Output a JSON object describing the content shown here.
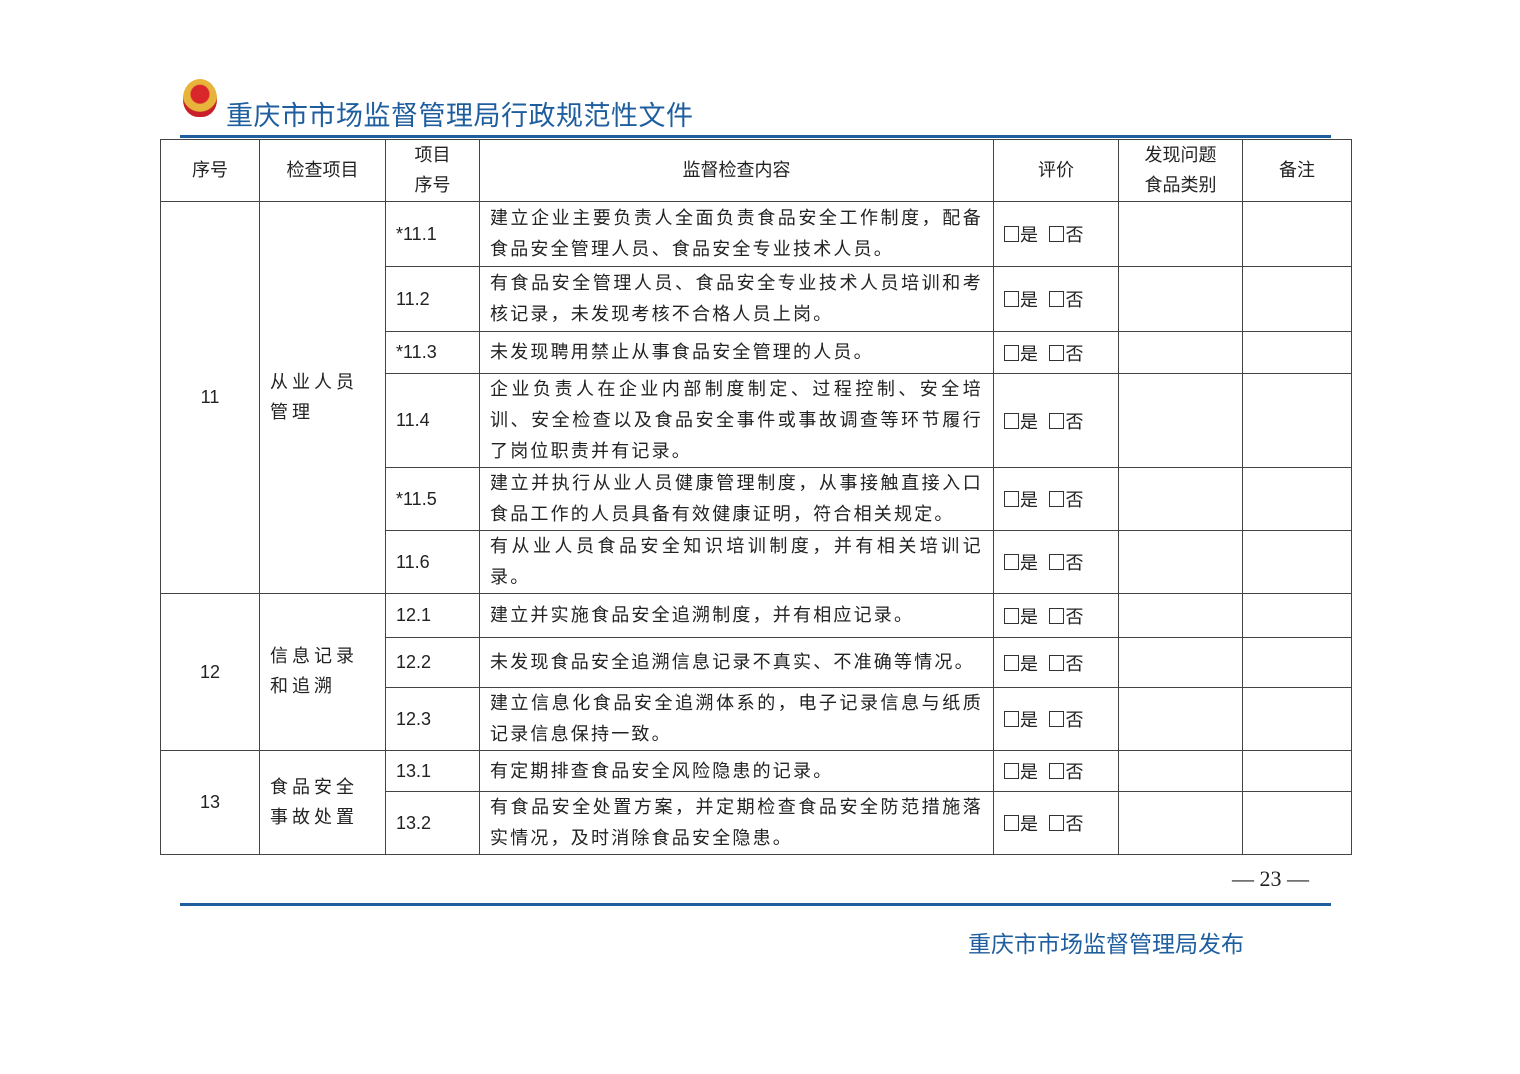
{
  "header": {
    "title": "重庆市市场监督管理局行政规范性文件"
  },
  "table": {
    "headers": [
      "序号",
      "检查项目",
      "项目\n序号",
      "监督检查内容",
      "评价",
      "发现问题\n食品类别",
      "备注"
    ],
    "eval_yes": "是",
    "eval_no": "否",
    "groups": [
      {
        "no": "11",
        "item": "从业人员管理",
        "rows": [
          {
            "sub": "*11.1",
            "content": "建立企业主要负责人全面负责食品安全工作制度，配备食品安全管理人员、食品安全专业技术人员。"
          },
          {
            "sub": "11.2",
            "content": "有食品安全管理人员、食品安全专业技术人员培训和考核记录，未发现考核不合格人员上岗。"
          },
          {
            "sub": "*11.3",
            "content": "未发现聘用禁止从事食品安全管理的人员。"
          },
          {
            "sub": "11.4",
            "content": "企业负责人在企业内部制度制定、过程控制、安全培训、安全检查以及食品安全事件或事故调查等环节履行了岗位职责并有记录。"
          },
          {
            "sub": "*11.5",
            "content": "建立并执行从业人员健康管理制度，从事接触直接入口食品工作的人员具备有效健康证明，符合相关规定。"
          },
          {
            "sub": "11.6",
            "content": "有从业人员食品安全知识培训制度，并有相关培训记录。"
          }
        ]
      },
      {
        "no": "12",
        "item": "信息记录和追溯",
        "rows": [
          {
            "sub": "12.1",
            "content": "建立并实施食品安全追溯制度，并有相应记录。"
          },
          {
            "sub": "12.2",
            "content": "未发现食品安全追溯信息记录不真实、不准确等情况。"
          },
          {
            "sub": "12.3",
            "content": "建立信息化食品安全追溯体系的，电子记录信息与纸质记录信息保持一致。"
          }
        ]
      },
      {
        "no": "13",
        "item": "食品安全事故处置",
        "rows": [
          {
            "sub": "13.1",
            "content": "有定期排查食品安全风险隐患的记录。"
          },
          {
            "sub": "13.2",
            "content": "有食品安全处置方案，并定期检查食品安全防范措施落实情况，及时消除食品安全隐患。"
          }
        ]
      }
    ]
  },
  "page_number": "— 23 —",
  "footer": {
    "publisher": "重庆市市场监督管理局发布"
  },
  "colors": {
    "brand_blue": "#1f5e9e"
  }
}
